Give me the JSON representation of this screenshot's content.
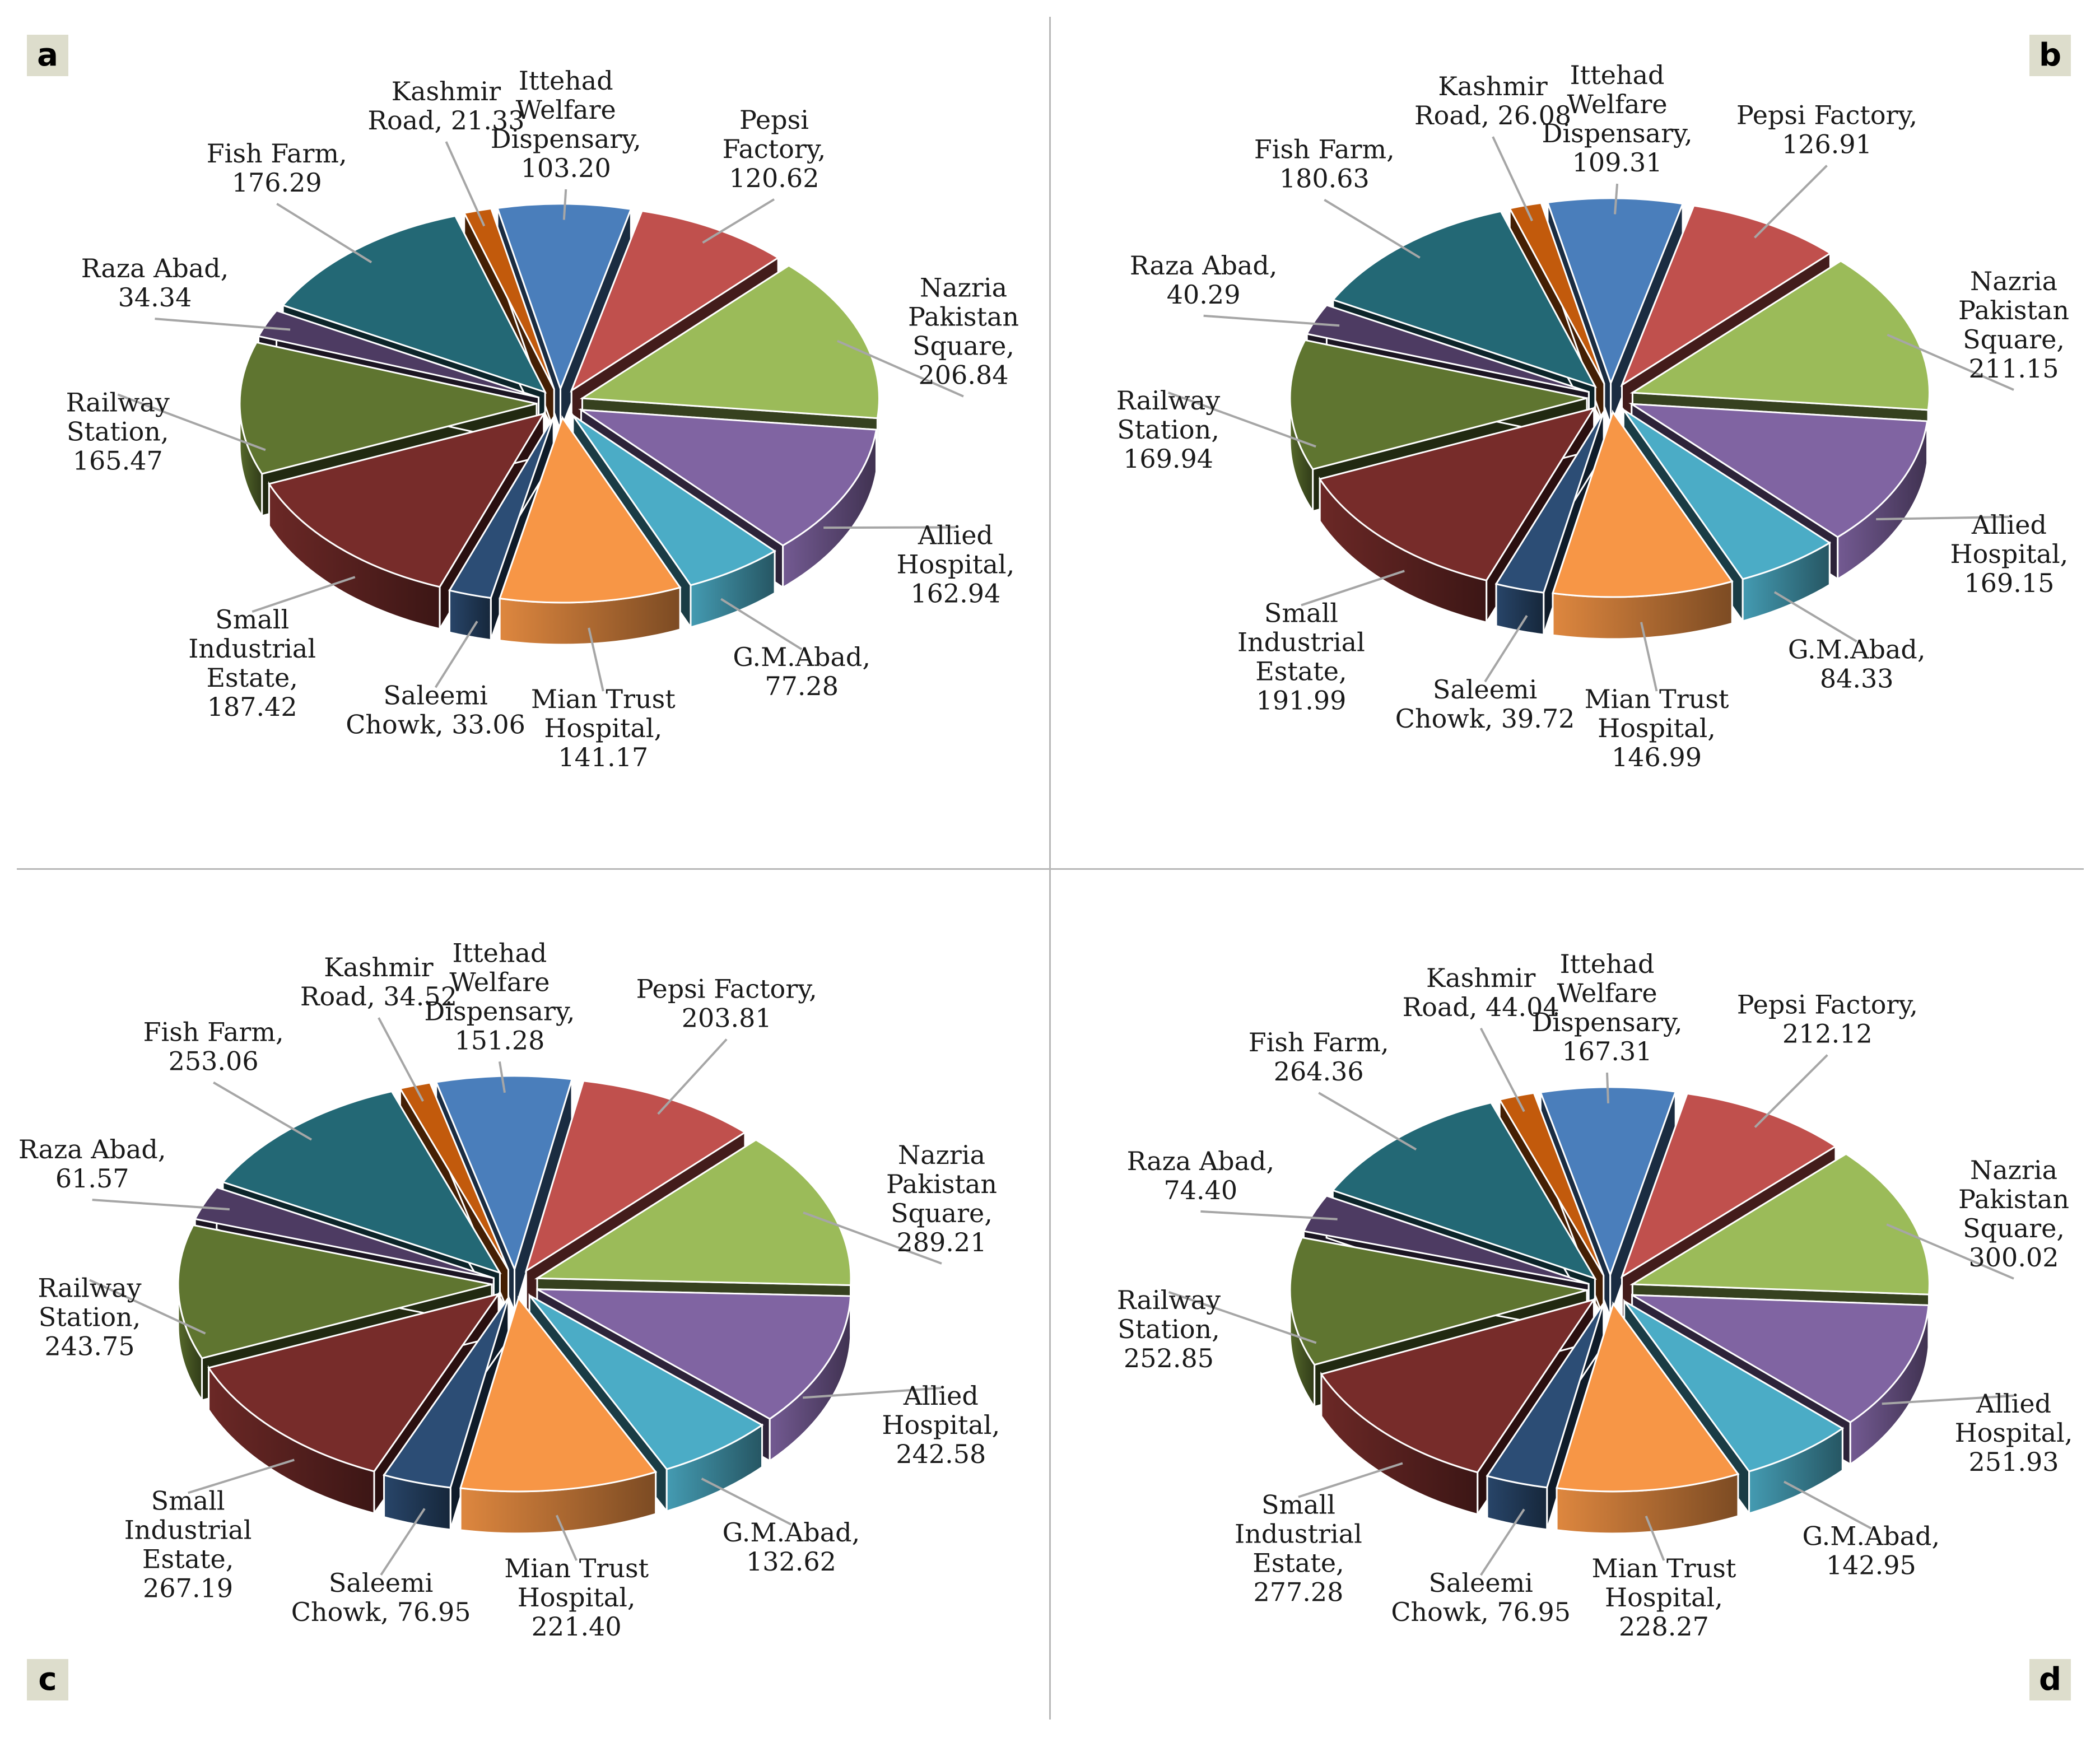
{
  "colors": {
    "Fish Farm": "#236875",
    "Kashmir Road": "#c25a0c",
    "Ittehad Welfare Dispensary": "#4a7ebb",
    "Pepsi Factory": "#c0504d",
    "Nazria Pakistan Square": "#9bbb59",
    "Allied Hospital": "#8064a2",
    "G.M.Abad": "#4bacc6",
    "Mian Trust Hospital": "#f79646",
    "Saleemi Chowk": "#2c4d75",
    "Small Industrial Estate": "#772c2a",
    "Railway Station": "#5f7530",
    "Raza Abad": "#4d3b62"
  },
  "chart_data": [
    {
      "panel": "a",
      "type": "pie",
      "categories": [
        "Fish Farm",
        "Kashmir Road",
        "Ittehad Welfare Dispensary",
        "Pepsi Factory",
        "Nazria Pakistan Square",
        "Allied Hospital",
        "G.M.Abad",
        "Mian Trust Hospital",
        "Saleemi Chowk",
        "Small Industrial Estate",
        "Railway Station",
        "Raza Abad"
      ],
      "values": [
        176.29,
        21.33,
        103.2,
        120.62,
        206.84,
        162.94,
        77.28,
        141.17,
        33.06,
        187.42,
        165.47,
        34.34
      ],
      "labels": [
        [
          "Fish Farm,",
          "176.29"
        ],
        [
          "Kashmir",
          "Road, 21.33"
        ],
        [
          "Ittehad",
          "Welfare",
          "Dispensary,",
          "103.20"
        ],
        [
          "Pepsi",
          "Factory,",
          "120.62"
        ],
        [
          "Nazria",
          "Pakistan",
          "Square,",
          "206.84"
        ],
        [
          "Allied",
          "Hospital,",
          "162.94"
        ],
        [
          "G.M.Abad,",
          "77.28"
        ],
        [
          "Mian Trust",
          "Hospital,",
          "141.17"
        ],
        [
          "Saleemi",
          "Chowk, 33.06"
        ],
        [
          "Small",
          "Industrial",
          "Estate,",
          "187.42"
        ],
        [
          "Railway",
          "Station,",
          "165.47"
        ],
        [
          "Raza Abad,",
          "34.34"
        ]
      ]
    },
    {
      "panel": "b",
      "type": "pie",
      "categories": [
        "Fish Farm",
        "Kashmir Road",
        "Ittehad Welfare Dispensary",
        "Pepsi Factory",
        "Nazria Pakistan Square",
        "Allied Hospital",
        "G.M.Abad",
        "Mian Trust Hospital",
        "Saleemi Chowk",
        "Small Industrial Estate",
        "Railway Station",
        "Raza Abad"
      ],
      "values": [
        180.63,
        26.08,
        109.31,
        126.91,
        211.15,
        169.15,
        84.33,
        146.99,
        39.72,
        191.99,
        169.94,
        40.29
      ],
      "labels": [
        [
          "Fish Farm,",
          "180.63"
        ],
        [
          "Kashmir",
          "Road, 26.08"
        ],
        [
          "Ittehad",
          "Welfare",
          "Dispensary,",
          "109.31"
        ],
        [
          "Pepsi Factory,",
          "126.91"
        ],
        [
          "Nazria",
          "Pakistan",
          "Square,",
          "211.15"
        ],
        [
          "Allied",
          "Hospital,",
          "169.15"
        ],
        [
          "G.M.Abad,",
          "84.33"
        ],
        [
          "Mian Trust",
          "Hospital,",
          "146.99"
        ],
        [
          "Saleemi",
          "Chowk, 39.72"
        ],
        [
          "Small",
          "Industrial",
          "Estate,",
          "191.99"
        ],
        [
          "Railway",
          "Station,",
          "169.94"
        ],
        [
          "Raza Abad,",
          "40.29"
        ]
      ]
    },
    {
      "panel": "c",
      "type": "pie",
      "categories": [
        "Fish Farm",
        "Kashmir Road",
        "Ittehad Welfare Dispensary",
        "Pepsi Factory",
        "Nazria Pakistan Square",
        "Allied Hospital",
        "G.M.Abad",
        "Mian Trust Hospital",
        "Saleemi Chowk",
        "Small Industrial Estate",
        "Railway Station",
        "Raza Abad"
      ],
      "values": [
        253.06,
        34.52,
        151.28,
        203.81,
        289.21,
        242.58,
        132.62,
        221.4,
        76.95,
        267.19,
        243.75,
        61.57
      ],
      "labels": [
        [
          "Fish Farm,",
          "253.06"
        ],
        [
          "Kashmir",
          "Road, 34.52"
        ],
        [
          "Ittehad",
          "Welfare",
          "Dispensary,",
          "151.28"
        ],
        [
          "Pepsi Factory,",
          "203.81"
        ],
        [
          "Nazria",
          "Pakistan",
          "Square,",
          "289.21"
        ],
        [
          "Allied",
          "Hospital,",
          "242.58"
        ],
        [
          "G.M.Abad,",
          "132.62"
        ],
        [
          "Mian Trust",
          "Hospital,",
          "221.40"
        ],
        [
          "Saleemi",
          "Chowk, 76.95"
        ],
        [
          "Small",
          "Industrial",
          "Estate,",
          "267.19"
        ],
        [
          "Railway",
          "Station,",
          "243.75"
        ],
        [
          "Raza Abad,",
          "61.57"
        ]
      ]
    },
    {
      "panel": "d",
      "type": "pie",
      "categories": [
        "Fish Farm",
        "Kashmir Road",
        "Ittehad Welfare Dispensary",
        "Pepsi Factory",
        "Nazria Pakistan Square",
        "Allied Hospital",
        "G.M.Abad",
        "Mian Trust Hospital",
        "Saleemi Chowk",
        "Small Industrial Estate",
        "Railway Station",
        "Raza Abad"
      ],
      "values": [
        264.36,
        44.04,
        167.31,
        212.12,
        300.02,
        251.93,
        142.95,
        228.27,
        76.95,
        277.28,
        252.85,
        74.4
      ],
      "labels": [
        [
          "Fish Farm,",
          "264.36"
        ],
        [
          "Kashmir",
          "Road, 44.04"
        ],
        [
          "Ittehad",
          "Welfare",
          "Dispensary,",
          "167.31"
        ],
        [
          "Pepsi Factory,",
          "212.12"
        ],
        [
          "Nazria",
          "Pakistan",
          "Square,",
          "300.02"
        ],
        [
          "Allied",
          "Hospital,",
          "251.93"
        ],
        [
          "G.M.Abad,",
          "142.95"
        ],
        [
          "Mian Trust",
          "Hospital,",
          "228.27"
        ],
        [
          "Saleemi",
          "Chowk, 76.95"
        ],
        [
          "Small",
          "Industrial",
          "Estate,",
          "277.28"
        ],
        [
          "Railway",
          "Station,",
          "252.85"
        ],
        [
          "Raza Abad,",
          "74.40"
        ]
      ]
    }
  ]
}
